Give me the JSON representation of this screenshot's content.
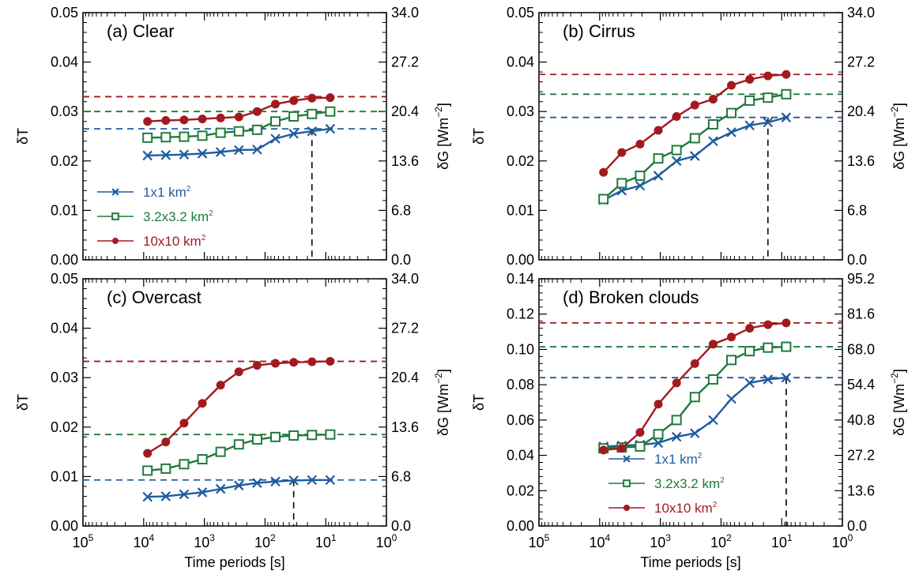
{
  "figure": {
    "x_ticks_text": [
      "10",
      "10",
      "10",
      "10",
      "10",
      "10"
    ],
    "x_ticks_exp": [
      "5",
      "4",
      "3",
      "2",
      "1",
      "0"
    ],
    "x_tick_values": [
      100000,
      10000,
      1000,
      100,
      10,
      1
    ],
    "xlabel": "Time periods [s]",
    "ylabel_left": "δT",
    "ylabel_right_base": "δG [Wm",
    "ylabel_right_exp": "−2",
    "ylabel_right_close": "]",
    "legend_unit_exp": "2",
    "colors": {
      "s1": "#1f5c9e",
      "s2": "#1f7a3c",
      "s3": "#a31a1e"
    }
  },
  "chart_data": [
    {
      "type": "line",
      "title": "(a) Clear",
      "xscale": "log",
      "xlim": [
        100000,
        1
      ],
      "x_reversed": true,
      "ylim": [
        0,
        0.05
      ],
      "yticks": [
        "0.00",
        "0.01",
        "0.02",
        "0.03",
        "0.04",
        "0.05"
      ],
      "y2ticks": [
        "0.0",
        "6.8",
        "13.6",
        "20.4",
        "27.2",
        "34.0"
      ],
      "x": [
        8640,
        4320,
        2160,
        1080,
        540,
        270,
        135,
        67.5,
        33.75,
        16.875,
        8.4375
      ],
      "series": [
        {
          "name": "1x1 km",
          "marker": "x",
          "values": [
            0.0211,
            0.0212,
            0.0213,
            0.0215,
            0.0218,
            0.0222,
            0.0223,
            0.0245,
            0.0255,
            0.026,
            0.0265
          ]
        },
        {
          "name": "3.2x3.2 km",
          "marker": "square",
          "values": [
            0.0247,
            0.0248,
            0.0249,
            0.0251,
            0.0257,
            0.026,
            0.0263,
            0.028,
            0.029,
            0.0295,
            0.03
          ]
        },
        {
          "name": "10x10 km",
          "marker": "circle",
          "values": [
            0.028,
            0.0282,
            0.0283,
            0.0285,
            0.0287,
            0.0289,
            0.03,
            0.0315,
            0.0322,
            0.0327,
            0.0328
          ]
        }
      ],
      "hlines": [
        0.0265,
        0.03,
        0.033
      ],
      "vline_x": 16.875,
      "legend": "lower-left"
    },
    {
      "type": "line",
      "title": "(b) Cirrus",
      "xscale": "log",
      "xlim": [
        100000,
        1
      ],
      "x_reversed": true,
      "ylim": [
        0,
        0.05
      ],
      "yticks": [
        "0.00",
        "0.01",
        "0.02",
        "0.03",
        "0.04",
        "0.05"
      ],
      "y2ticks": [
        "0.0",
        "6.8",
        "13.6",
        "20.4",
        "27.2",
        "34.0"
      ],
      "x": [
        8640,
        4320,
        2160,
        1080,
        540,
        270,
        135,
        67.5,
        33.75,
        16.875,
        8.4375
      ],
      "series": [
        {
          "name": "1x1 km",
          "marker": "x",
          "values": [
            0.0121,
            0.014,
            0.015,
            0.017,
            0.02,
            0.021,
            0.024,
            0.0258,
            0.0272,
            0.0278,
            0.0288
          ]
        },
        {
          "name": "3.2x3.2 km",
          "marker": "square",
          "values": [
            0.0123,
            0.0155,
            0.017,
            0.0205,
            0.0222,
            0.0246,
            0.0274,
            0.0297,
            0.0322,
            0.0328,
            0.0335
          ]
        },
        {
          "name": "10x10 km",
          "marker": "circle",
          "values": [
            0.0177,
            0.0217,
            0.0234,
            0.0262,
            0.029,
            0.0313,
            0.0325,
            0.0353,
            0.0365,
            0.0372,
            0.0375
          ]
        }
      ],
      "hlines": [
        0.0288,
        0.0335,
        0.0375
      ],
      "vline_x": 16.875
    },
    {
      "type": "line",
      "title": "(c) Overcast",
      "xscale": "log",
      "xlim": [
        100000,
        1
      ],
      "x_reversed": true,
      "ylim": [
        0,
        0.05
      ],
      "yticks": [
        "0.00",
        "0.01",
        "0.02",
        "0.03",
        "0.04",
        "0.05"
      ],
      "y2ticks": [
        "0.0",
        "6.8",
        "13.6",
        "20.4",
        "27.2",
        "34.0"
      ],
      "x": [
        8640,
        4320,
        2160,
        1080,
        540,
        270,
        135,
        67.5,
        33.75,
        16.875,
        8.4375
      ],
      "series": [
        {
          "name": "1x1 km",
          "marker": "x",
          "values": [
            0.0059,
            0.006,
            0.0064,
            0.0068,
            0.0075,
            0.0082,
            0.0087,
            0.009,
            0.0092,
            0.0093,
            0.0093
          ]
        },
        {
          "name": "3.2x3.2 km",
          "marker": "square",
          "values": [
            0.0112,
            0.0116,
            0.0125,
            0.0135,
            0.015,
            0.0165,
            0.0175,
            0.018,
            0.0183,
            0.0184,
            0.0185
          ]
        },
        {
          "name": "10x10 km",
          "marker": "circle",
          "values": [
            0.0147,
            0.017,
            0.0208,
            0.0248,
            0.0285,
            0.0312,
            0.0325,
            0.0329,
            0.0331,
            0.0332,
            0.0333
          ]
        }
      ],
      "hlines": [
        0.0093,
        0.0185,
        0.0333
      ],
      "vline_x": 33.75
    },
    {
      "type": "line",
      "title": "(d) Broken clouds",
      "xscale": "log",
      "xlim": [
        100000,
        1
      ],
      "x_reversed": true,
      "ylim": [
        0,
        0.14
      ],
      "yticks": [
        "0.00",
        "0.02",
        "0.04",
        "0.06",
        "0.08",
        "0.10",
        "0.12",
        "0.14"
      ],
      "y2ticks": [
        "0.0",
        "13.6",
        "27.2",
        "40.8",
        "54.4",
        "68.0",
        "81.6",
        "95.2"
      ],
      "x": [
        8640,
        4320,
        2160,
        1080,
        540,
        270,
        135,
        67.5,
        33.75,
        16.875,
        8.4375
      ],
      "series": [
        {
          "name": "1x1 km",
          "marker": "x",
          "values": [
            0.045,
            0.0455,
            0.046,
            0.047,
            0.0505,
            0.0525,
            0.06,
            0.072,
            0.081,
            0.083,
            0.084
          ]
        },
        {
          "name": "3.2x3.2 km",
          "marker": "square",
          "values": [
            0.044,
            0.0445,
            0.045,
            0.052,
            0.06,
            0.073,
            0.083,
            0.094,
            0.099,
            0.101,
            0.1015
          ]
        },
        {
          "name": "10x10 km",
          "marker": "circle",
          "values": [
            0.043,
            0.044,
            0.053,
            0.069,
            0.081,
            0.092,
            0.103,
            0.107,
            0.112,
            0.114,
            0.115
          ]
        }
      ],
      "hlines": [
        0.084,
        0.1015,
        0.115
      ],
      "vline_x": 8.4375,
      "legend": "lower-center"
    }
  ]
}
